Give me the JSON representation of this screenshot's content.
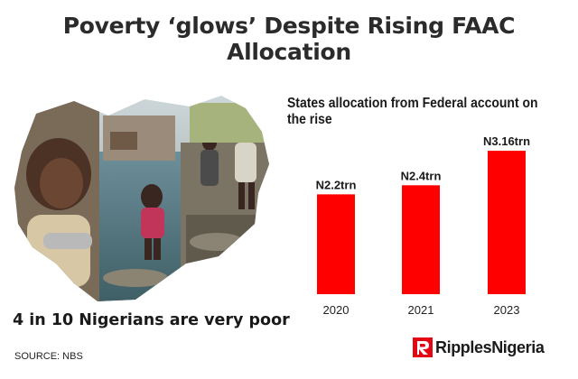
{
  "header": {
    "title": "Poverty ‘glows’ Despite Rising FAAC Allocation"
  },
  "photo": {
    "caption": "4 in 10 Nigerians are very poor"
  },
  "footer": {
    "source": "SOURCE: NBS",
    "brand": "RipplesNigeria"
  },
  "colors": {
    "bar": "#ff0000",
    "text": "#1a1a1a",
    "logo_red": "#e30613"
  },
  "chart_data": {
    "type": "bar",
    "title": "States allocation from Federal account on the rise",
    "categories": [
      "2020",
      "2021",
      "2023"
    ],
    "values": [
      2.2,
      2.4,
      3.16
    ],
    "data_labels": [
      "N2.2trn",
      "N2.4trn",
      "N3.16trn"
    ],
    "unit": "trn",
    "xlabel": "",
    "ylabel": "",
    "ylim": [
      0,
      3.5
    ],
    "grid": false,
    "legend": "none"
  }
}
